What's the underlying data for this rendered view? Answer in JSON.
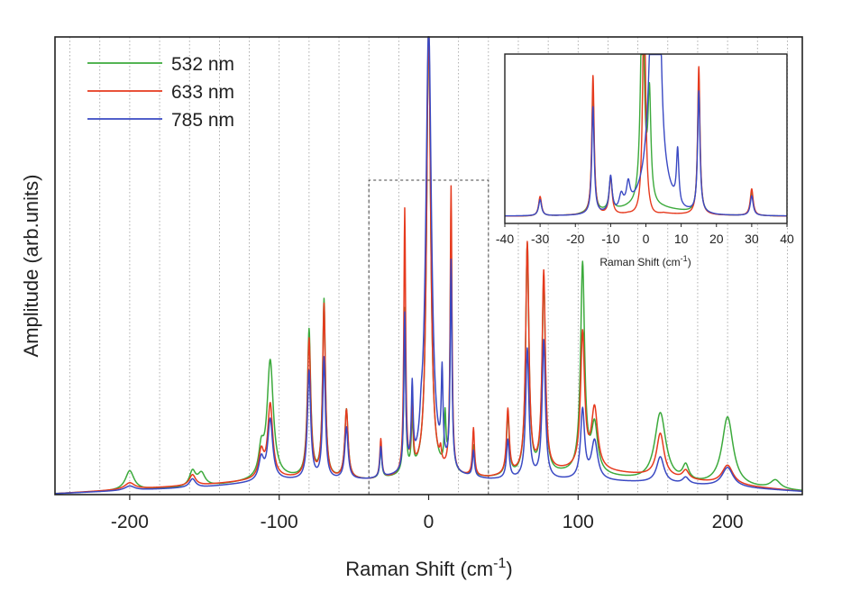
{
  "chart_data": {
    "type": "line",
    "title": "",
    "xlabel": "Raman Shift (cm",
    "xlabel_sup": "-1",
    "xlabel_close": ")",
    "ylabel": "Amplitude (arb.units)",
    "xlim": [
      -250,
      250
    ],
    "ylim": [
      0,
      100
    ],
    "xticks": [
      -200,
      -100,
      0,
      100,
      200
    ],
    "xtick_labels": [
      "-200",
      "-100",
      "0",
      "100",
      "200"
    ],
    "gridlines_x": [
      -240,
      -220,
      -200,
      -180,
      -160,
      -140,
      -120,
      -100,
      -80,
      -60,
      -40,
      -20,
      20,
      40,
      60,
      80,
      100,
      120,
      140,
      160,
      180,
      200,
      220,
      240
    ],
    "zoom_box_x": [
      -40,
      40
    ],
    "legend": {
      "position": "top-left",
      "entries": [
        "532 nm",
        "633 nm",
        "785 nm"
      ]
    },
    "series": [
      {
        "name": "532 nm",
        "color": "#3caa3c",
        "baseline": [
          [
            -250,
            0.0
          ],
          [
            -150,
            1.5
          ],
          [
            -100,
            3.5
          ],
          [
            -40,
            3.0
          ],
          [
            0,
            4.0
          ],
          [
            40,
            3.5
          ],
          [
            100,
            4.5
          ],
          [
            150,
            2.5
          ],
          [
            200,
            1.5
          ],
          [
            250,
            0.5
          ]
        ],
        "peaks": [
          {
            "x": -200,
            "h": 4.5,
            "w": 3.5
          },
          {
            "x": -158,
            "h": 3.5,
            "w": 2.5
          },
          {
            "x": -152,
            "h": 3.0,
            "w": 3.0
          },
          {
            "x": -112,
            "h": 6.0,
            "w": 2.0
          },
          {
            "x": -106,
            "h": 27.0,
            "w": 2.5
          },
          {
            "x": -80,
            "h": 34.0,
            "w": 1.3
          },
          {
            "x": -70,
            "h": 41.0,
            "w": 1.1
          },
          {
            "x": -55,
            "h": 16.0,
            "w": 1.3
          },
          {
            "x": -32,
            "h": 7.0,
            "w": 0.8
          },
          {
            "x": -16,
            "h": 38.0,
            "w": 0.7
          },
          {
            "x": -11,
            "h": 12.0,
            "w": 0.7
          },
          {
            "x": 0,
            "h": 104.0,
            "w": 1.6
          },
          {
            "x": 11,
            "h": 12.0,
            "w": 0.7
          },
          {
            "x": 15,
            "h": 56.0,
            "w": 0.7
          },
          {
            "x": 30,
            "h": 7.0,
            "w": 0.8
          },
          {
            "x": 53,
            "h": 14.0,
            "w": 1.1
          },
          {
            "x": 66,
            "h": 53.0,
            "w": 1.3
          },
          {
            "x": 77,
            "h": 45.0,
            "w": 1.3
          },
          {
            "x": 103,
            "h": 48.0,
            "w": 1.6
          },
          {
            "x": 111,
            "h": 11.0,
            "w": 2.5
          },
          {
            "x": 155,
            "h": 16.0,
            "w": 4.5
          },
          {
            "x": 172,
            "h": 3.5,
            "w": 2.5
          },
          {
            "x": 200,
            "h": 16.0,
            "w": 4.5
          },
          {
            "x": 232,
            "h": 2.0,
            "w": 4.0
          }
        ]
      },
      {
        "name": "633 nm",
        "color": "#e63a1e",
        "baseline": [
          [
            -250,
            0.0
          ],
          [
            -150,
            2.0
          ],
          [
            -100,
            3.5
          ],
          [
            -40,
            3.0
          ],
          [
            0,
            4.0
          ],
          [
            40,
            3.5
          ],
          [
            100,
            5.5
          ],
          [
            150,
            4.0
          ],
          [
            200,
            2.0
          ],
          [
            250,
            0.5
          ]
        ],
        "peaks": [
          {
            "x": -200,
            "h": 1.5,
            "w": 4.0
          },
          {
            "x": -158,
            "h": 2.5,
            "w": 2.5
          },
          {
            "x": -112,
            "h": 6.0,
            "w": 2.0
          },
          {
            "x": -106,
            "h": 17.0,
            "w": 2.0
          },
          {
            "x": -80,
            "h": 32.0,
            "w": 1.3
          },
          {
            "x": -70,
            "h": 40.0,
            "w": 1.1
          },
          {
            "x": -55,
            "h": 16.0,
            "w": 1.3
          },
          {
            "x": -32,
            "h": 9.0,
            "w": 0.8
          },
          {
            "x": -16,
            "h": 61.0,
            "w": 0.7
          },
          {
            "x": -11,
            "h": 16.0,
            "w": 0.7
          },
          {
            "x": 0,
            "h": 104.0,
            "w": 1.6
          },
          {
            "x": 8,
            "h": 3.0,
            "w": 0.7
          },
          {
            "x": 15,
            "h": 66.0,
            "w": 0.7
          },
          {
            "x": 30,
            "h": 11.0,
            "w": 0.8
          },
          {
            "x": 53,
            "h": 15.0,
            "w": 1.1
          },
          {
            "x": 66,
            "h": 53.0,
            "w": 1.3
          },
          {
            "x": 77,
            "h": 46.0,
            "w": 1.3
          },
          {
            "x": 103,
            "h": 31.0,
            "w": 1.6
          },
          {
            "x": 111,
            "h": 14.0,
            "w": 2.5
          },
          {
            "x": 155,
            "h": 10.0,
            "w": 3.0
          },
          {
            "x": 172,
            "h": 2.0,
            "w": 2.5
          },
          {
            "x": 200,
            "h": 4.5,
            "w": 4.5
          }
        ]
      },
      {
        "name": "785 nm",
        "color": "#3a49c3",
        "baseline": [
          [
            -250,
            0.0
          ],
          [
            -150,
            1.5
          ],
          [
            -100,
            3.0
          ],
          [
            -40,
            3.0
          ],
          [
            0,
            4.0
          ],
          [
            40,
            3.0
          ],
          [
            100,
            3.0
          ],
          [
            150,
            2.5
          ],
          [
            200,
            1.5
          ],
          [
            250,
            0.5
          ]
        ],
        "peaks": [
          {
            "x": -200,
            "h": 1.0,
            "w": 4.0
          },
          {
            "x": -158,
            "h": 2.0,
            "w": 2.5
          },
          {
            "x": -112,
            "h": 5.0,
            "w": 2.0
          },
          {
            "x": -106,
            "h": 14.0,
            "w": 2.0
          },
          {
            "x": -80,
            "h": 25.0,
            "w": 1.3
          },
          {
            "x": -70,
            "h": 28.0,
            "w": 1.1
          },
          {
            "x": -55,
            "h": 12.0,
            "w": 1.3
          },
          {
            "x": -32,
            "h": 7.0,
            "w": 0.8
          },
          {
            "x": -16,
            "h": 36.0,
            "w": 0.7
          },
          {
            "x": -11,
            "h": 18.0,
            "w": 0.7
          },
          {
            "x": -5,
            "h": 4.0,
            "w": 1.0
          },
          {
            "x": 0,
            "h": 104.0,
            "w": 2.2
          },
          {
            "x": 9,
            "h": 20.0,
            "w": 0.7
          },
          {
            "x": 15,
            "h": 48.0,
            "w": 0.7
          },
          {
            "x": 30,
            "h": 6.0,
            "w": 0.8
          },
          {
            "x": 53,
            "h": 9.0,
            "w": 1.1
          },
          {
            "x": 66,
            "h": 30.0,
            "w": 1.3
          },
          {
            "x": 77,
            "h": 32.0,
            "w": 1.3
          },
          {
            "x": 103,
            "h": 16.0,
            "w": 1.6
          },
          {
            "x": 111,
            "h": 9.0,
            "w": 2.5
          },
          {
            "x": 155,
            "h": 6.0,
            "w": 3.0
          },
          {
            "x": 172,
            "h": 1.5,
            "w": 2.5
          },
          {
            "x": 200,
            "h": 4.5,
            "w": 4.5
          }
        ]
      }
    ],
    "inset": {
      "xlim": [
        -40,
        40
      ],
      "ylim": [
        0,
        100
      ],
      "xticks": [
        -40,
        -30,
        -20,
        -10,
        0,
        10,
        20,
        30,
        40
      ],
      "xtick_labels": [
        "-40",
        "-30",
        "-20",
        "-10",
        "0",
        "10",
        "20",
        "30",
        "40"
      ],
      "xlabel": "Raman Shift (cm",
      "xlabel_sup": "-1",
      "xlabel_close": ")",
      "series": [
        {
          "name": "532 nm",
          "color": "#3caa3c",
          "baseline": [
            [
              -40,
              1.0
            ],
            [
              -30,
              1.0
            ],
            [
              -20,
              1.5
            ],
            [
              -5,
              5.0
            ],
            [
              5,
              5.0
            ],
            [
              20,
              1.5
            ],
            [
              40,
              1.0
            ]
          ],
          "peaks": [
            {
              "x": -30,
              "h": 10.0,
              "w": 0.5
            },
            {
              "x": -15,
              "h": 68.0,
              "w": 0.4
            },
            {
              "x": -10,
              "h": 18.0,
              "w": 0.5
            },
            {
              "x": -1,
              "h": 130.0,
              "w": 0.6
            },
            {
              "x": 1,
              "h": 60.0,
              "w": 0.5
            },
            {
              "x": 15,
              "h": 76.0,
              "w": 0.4
            },
            {
              "x": 30,
              "h": 13.0,
              "w": 0.5
            }
          ]
        },
        {
          "name": "633 nm",
          "color": "#e63a1e",
          "baseline": [
            [
              -40,
              1.0
            ],
            [
              -30,
              1.0
            ],
            [
              -20,
              1.5
            ],
            [
              -5,
              1.5
            ],
            [
              -2,
              0.0
            ],
            [
              2,
              0.0
            ],
            [
              5,
              2.0
            ],
            [
              20,
              1.5
            ],
            [
              40,
              1.0
            ]
          ],
          "peaks": [
            {
              "x": -30,
              "h": 11.0,
              "w": 0.5
            },
            {
              "x": -15,
              "h": 78.0,
              "w": 0.4
            },
            {
              "x": -10,
              "h": 21.0,
              "w": 0.5
            },
            {
              "x": -0.5,
              "h": 130.0,
              "w": 0.5
            },
            {
              "x": 15,
              "h": 83.0,
              "w": 0.4
            },
            {
              "x": 30,
              "h": 15.0,
              "w": 0.5
            }
          ]
        },
        {
          "name": "785 nm",
          "color": "#3a49c3",
          "baseline": [
            [
              -40,
              1.0
            ],
            [
              -30,
              1.0
            ],
            [
              -20,
              1.0
            ],
            [
              -8,
              1.5
            ],
            [
              -3,
              6.0
            ],
            [
              0,
              10.0
            ],
            [
              6,
              8.0
            ],
            [
              10,
              2.0
            ],
            [
              20,
              1.0
            ],
            [
              40,
              1.0
            ]
          ],
          "peaks": [
            {
              "x": -30,
              "h": 9.0,
              "w": 0.5
            },
            {
              "x": -15,
              "h": 60.0,
              "w": 0.4
            },
            {
              "x": -10,
              "h": 20.0,
              "w": 0.5
            },
            {
              "x": -7,
              "h": 8.0,
              "w": 0.7
            },
            {
              "x": -5,
              "h": 12.0,
              "w": 0.6
            },
            {
              "x": 2,
              "h": 120.0,
              "w": 1.2
            },
            {
              "x": 3.5,
              "h": 130.0,
              "w": 0.8
            },
            {
              "x": 9,
              "h": 30.0,
              "w": 0.4
            },
            {
              "x": 15,
              "h": 68.0,
              "w": 0.4
            },
            {
              "x": 30,
              "h": 11.0,
              "w": 0.5
            }
          ]
        }
      ]
    }
  }
}
